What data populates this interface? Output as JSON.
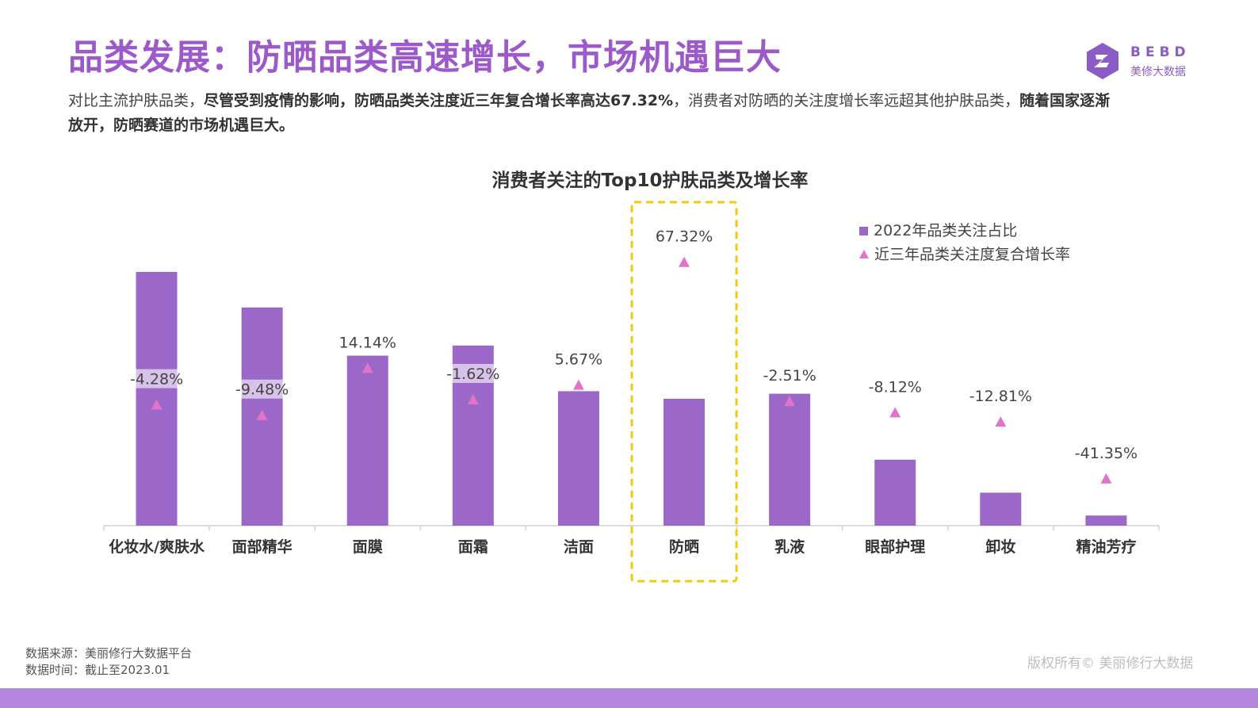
{
  "header": {
    "title": "品类发展：防晒品类高速增长，市场机遇巨大",
    "description": [
      {
        "text": "对比主流护肤品类，",
        "bold": false
      },
      {
        "text": "尽管受到疫情的影响，防晒品类关注度近三年复合增长率高达67.32%",
        "bold": true
      },
      {
        "text": "，消费者对防晒的关注度增长率远超其他护肤品类，",
        "bold": false
      },
      {
        "text": "随着国家逐渐放开，防晒赛道的市场机遇巨大。",
        "bold": true
      }
    ]
  },
  "logo": {
    "word": "BEBD",
    "sub": "美修大数据"
  },
  "colors": {
    "bar": "#9b68c9",
    "marker": "#e174c9",
    "title": "#9b59c9",
    "highlight": "#f2c811"
  },
  "chart_data": {
    "type": "bar",
    "title": "消费者关注的Top10护肤品类及增长率",
    "categories": [
      "化妆水/爽肤水",
      "面部精华",
      "面膜",
      "面霜",
      "洁面",
      "防晒",
      "乳液",
      "眼部护理",
      "卸妆",
      "精油芳疗"
    ],
    "series": [
      {
        "name": "2022年品类关注占比",
        "type": "bar",
        "values": [
          100,
          86,
          67,
          71,
          53,
          50,
          52,
          26,
          13,
          4
        ]
      },
      {
        "name": "近三年品类关注度复合增长率",
        "type": "marker",
        "values": [
          -4.28,
          -9.48,
          14.14,
          -1.62,
          5.67,
          67.32,
          -2.51,
          -8.12,
          -12.81,
          -41.35
        ],
        "labels": [
          "-4.28%",
          "-9.48%",
          "14.14%",
          "-1.62%",
          "5.67%",
          "67.32%",
          "-2.51%",
          "-8.12%",
          "-12.81%",
          "-41.35%"
        ]
      }
    ],
    "ylim": [
      0,
      100
    ],
    "y2lim": [
      -45,
      70
    ],
    "highlight_category": "防晒",
    "legend_position": "top-right",
    "grid": false
  },
  "footer": {
    "source": "数据来源：美丽修行大数据平台",
    "time": "数据时间：截止至2023.01",
    "copyright": "版权所有© 美丽修行大数据"
  }
}
